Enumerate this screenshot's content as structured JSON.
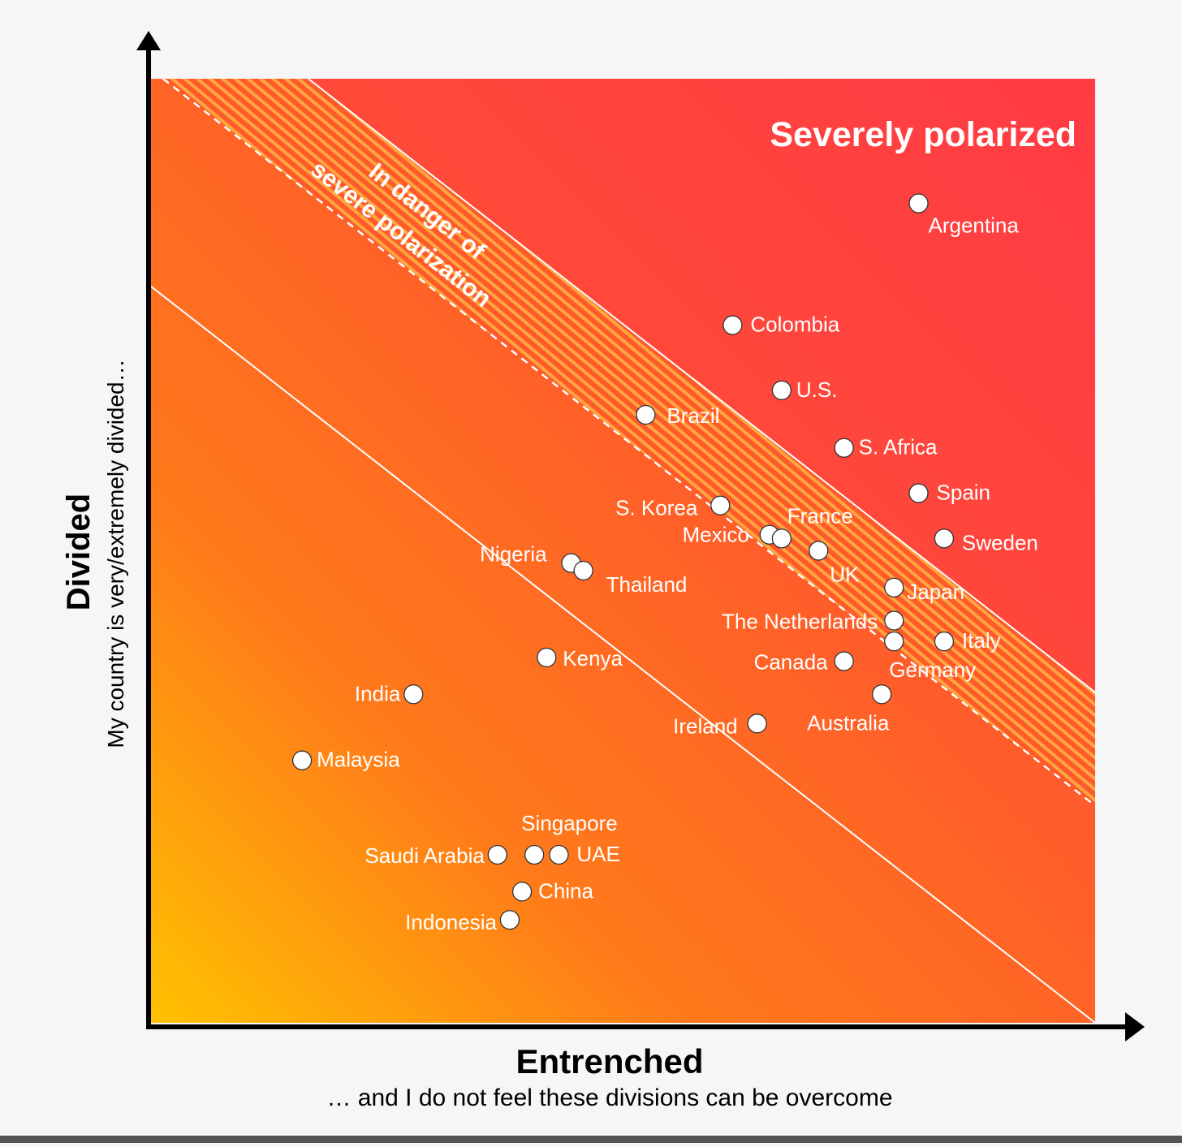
{
  "chart_data": {
    "type": "scatter",
    "title": "",
    "xlabel": "Entrenched",
    "xlabel_sub": "… and I do not feel these divisions can be overcome",
    "ylabel": "Divided",
    "ylabel_sub": "My country is very/extremely divided…",
    "xlim": [
      0,
      100
    ],
    "ylim": [
      0,
      100
    ],
    "grid": false,
    "zones": {
      "severe_label": "Severely polarized",
      "danger_label_line1": "In danger of",
      "danger_label_line2": "severe polarization",
      "severe_threshold": 113,
      "danger_threshold": 101,
      "lower_threshold": 78
    },
    "colors": {
      "low": "#ffc200",
      "mid": "#ff7a1a",
      "high": "#ff3b45",
      "point_fill": "#ffffff",
      "point_stroke": "#333333",
      "axis": "#000000"
    },
    "points": [
      {
        "name": "Argentina",
        "x": 81.3,
        "y": 86.8
      },
      {
        "name": "Colombia",
        "x": 61.6,
        "y": 73.9
      },
      {
        "name": "U.S.",
        "x": 66.8,
        "y": 67.0
      },
      {
        "name": "Brazil",
        "x": 52.4,
        "y": 64.4
      },
      {
        "name": "S. Africa",
        "x": 73.4,
        "y": 60.9
      },
      {
        "name": "Spain",
        "x": 81.3,
        "y": 56.1
      },
      {
        "name": "S. Korea",
        "x": 60.3,
        "y": 54.8
      },
      {
        "name": "France",
        "x": 65.5,
        "y": 51.7
      },
      {
        "name": "Mexico",
        "x": 66.8,
        "y": 51.3
      },
      {
        "name": "Sweden",
        "x": 84.0,
        "y": 51.3
      },
      {
        "name": "UK",
        "x": 70.7,
        "y": 50.0
      },
      {
        "name": "Nigeria",
        "x": 44.5,
        "y": 48.7
      },
      {
        "name": "Thailand",
        "x": 45.8,
        "y": 47.9
      },
      {
        "name": "Japan",
        "x": 78.7,
        "y": 46.1
      },
      {
        "name": "The Netherlands",
        "x": 78.7,
        "y": 42.6
      },
      {
        "name": "Germany",
        "x": 78.7,
        "y": 40.4
      },
      {
        "name": "Italy",
        "x": 84.0,
        "y": 40.4
      },
      {
        "name": "Kenya",
        "x": 41.9,
        "y": 38.7
      },
      {
        "name": "Canada",
        "x": 73.4,
        "y": 38.3
      },
      {
        "name": "Australia",
        "x": 77.4,
        "y": 34.8
      },
      {
        "name": "India",
        "x": 27.8,
        "y": 34.8
      },
      {
        "name": "Ireland",
        "x": 64.2,
        "y": 31.7
      },
      {
        "name": "Malaysia",
        "x": 16.0,
        "y": 27.8
      },
      {
        "name": "Singapore",
        "x": 40.6,
        "y": 17.8
      },
      {
        "name": "Saudi Arabia",
        "x": 36.7,
        "y": 17.8
      },
      {
        "name": "UAE",
        "x": 43.2,
        "y": 17.8
      },
      {
        "name": "China",
        "x": 39.3,
        "y": 13.9
      },
      {
        "name": "Indonesia",
        "x": 38.0,
        "y": 10.9
      }
    ]
  }
}
